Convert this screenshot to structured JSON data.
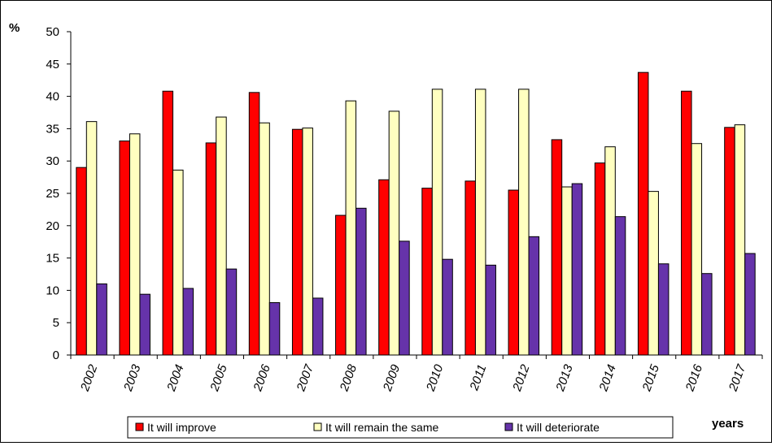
{
  "chart_data": {
    "type": "bar",
    "categories": [
      "2002",
      "2003",
      "2004",
      "2005",
      "2006",
      "2007",
      "2008",
      "2009",
      "2010",
      "2011",
      "2012",
      "2013",
      "2014",
      "2015",
      "2016",
      "2017"
    ],
    "series": [
      {
        "name": "It will improve",
        "color": "#ff0000",
        "values": [
          29.0,
          33.1,
          40.8,
          32.8,
          40.6,
          34.9,
          21.6,
          27.1,
          25.8,
          26.9,
          25.5,
          33.3,
          29.7,
          43.7,
          40.8,
          35.2
        ]
      },
      {
        "name": "It will remain the same",
        "color": "#ffffc0",
        "values": [
          36.1,
          34.2,
          28.6,
          36.8,
          35.9,
          35.1,
          39.3,
          37.7,
          41.1,
          41.1,
          41.1,
          26.0,
          32.2,
          25.3,
          32.7,
          35.6
        ]
      },
      {
        "name": "It will deteriorate",
        "color": "#6633aa",
        "values": [
          11.0,
          9.4,
          10.3,
          13.3,
          8.1,
          8.8,
          22.7,
          17.6,
          14.8,
          13.9,
          18.3,
          26.5,
          21.4,
          14.1,
          12.6,
          15.7
        ]
      }
    ],
    "ylabel": "%",
    "xlabel": "years",
    "ylim": [
      0,
      50
    ],
    "yticks": [
      0,
      5,
      10,
      15,
      20,
      25,
      30,
      35,
      40,
      45,
      50
    ],
    "grid": false,
    "legend_position": "bottom"
  }
}
